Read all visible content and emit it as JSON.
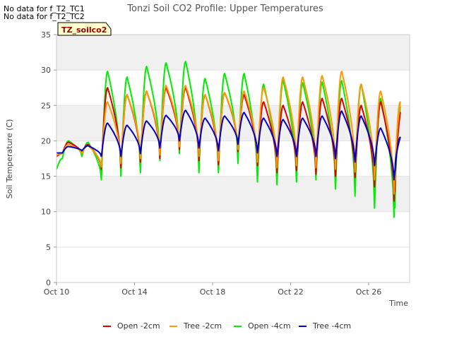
{
  "nodata": [
    "No data for f_T2_TC1",
    "No data for f_T2_TC2"
  ],
  "chart_data": {
    "type": "line",
    "title": "Tonzi Soil CO2 Profile: Upper Temperatures",
    "badge": "TZ_soilco2",
    "xlabel": "Time",
    "ylabel": "Soil Temperature (C)",
    "ylim": [
      0,
      35
    ],
    "yticks": [
      0,
      5,
      10,
      15,
      20,
      25,
      30,
      35
    ],
    "xlim": [
      "Oct 10",
      "Oct 28.1"
    ],
    "xticks": [
      "Oct 10",
      "Oct 14",
      "Oct 18",
      "Oct 22",
      "Oct 26"
    ],
    "xtick_days": [
      0,
      4,
      8,
      12,
      16
    ],
    "grid": "alternating horizontal bands",
    "legend_position": "bottom",
    "day_start": 10,
    "daily_minimum_note": "values are daily minima (early morning) and maxima (early afternoon) read from the plot",
    "series": [
      {
        "name": "Open -2cm",
        "color": "#dd0000",
        "start": 17.8,
        "mins": [
          18.2,
          18.2,
          16.0,
          16.2,
          17.0,
          17.5,
          18.8,
          17.2,
          16.6,
          18.5,
          16.5,
          15.5,
          15.8,
          15.3,
          15.0,
          14.8,
          13.5,
          11.5
        ],
        "maxs": [
          19.8,
          19.5,
          27.5,
          26.5,
          27.0,
          27.5,
          27.5,
          26.5,
          26.8,
          26.5,
          25.5,
          25.0,
          25.5,
          26.0,
          26.0,
          25.0,
          25.5,
          24.0
        ],
        "end": 12.8
      },
      {
        "name": "Tree -2cm",
        "color": "#ff9900",
        "start": 18.0,
        "mins": [
          18.2,
          18.2,
          16.3,
          16.8,
          17.5,
          18.0,
          19.2,
          17.8,
          17.2,
          18.8,
          17.0,
          16.2,
          16.5,
          16.2,
          16.0,
          15.6,
          14.5,
          12.5
        ],
        "maxs": [
          19.5,
          19.3,
          25.5,
          26.5,
          27.0,
          27.8,
          27.8,
          26.5,
          26.8,
          27.0,
          27.5,
          29.0,
          29.0,
          29.2,
          29.8,
          28.0,
          27.0,
          25.5
        ],
        "end": 14.5
      },
      {
        "name": "Open -4cm",
        "color": "#00ee00",
        "start": 16.0,
        "mins": [
          17.5,
          17.8,
          14.5,
          15.0,
          15.5,
          17.2,
          18.2,
          15.5,
          15.5,
          16.8,
          14.2,
          13.8,
          14.2,
          14.5,
          13.2,
          12.2,
          10.5,
          9.2
        ],
        "maxs": [
          20.0,
          19.8,
          29.8,
          29.0,
          30.5,
          31.0,
          31.2,
          28.8,
          29.5,
          29.5,
          28.0,
          28.5,
          28.2,
          28.3,
          28.5,
          28.0,
          26.0,
          24.8
        ],
        "end": 10.5
      },
      {
        "name": "Tree -4cm",
        "color": "#0000cc",
        "start": 18.3,
        "mins": [
          18.3,
          18.6,
          17.8,
          17.8,
          18.2,
          19.0,
          20.0,
          19.0,
          18.6,
          19.5,
          18.3,
          17.8,
          17.8,
          17.8,
          17.5,
          17.0,
          16.5,
          14.5
        ],
        "maxs": [
          19.2,
          19.3,
          22.5,
          22.2,
          22.8,
          23.6,
          24.3,
          23.2,
          23.5,
          24.0,
          23.2,
          23.0,
          23.2,
          23.5,
          24.2,
          23.5,
          21.8,
          20.5
        ],
        "end": 15.8
      }
    ]
  }
}
